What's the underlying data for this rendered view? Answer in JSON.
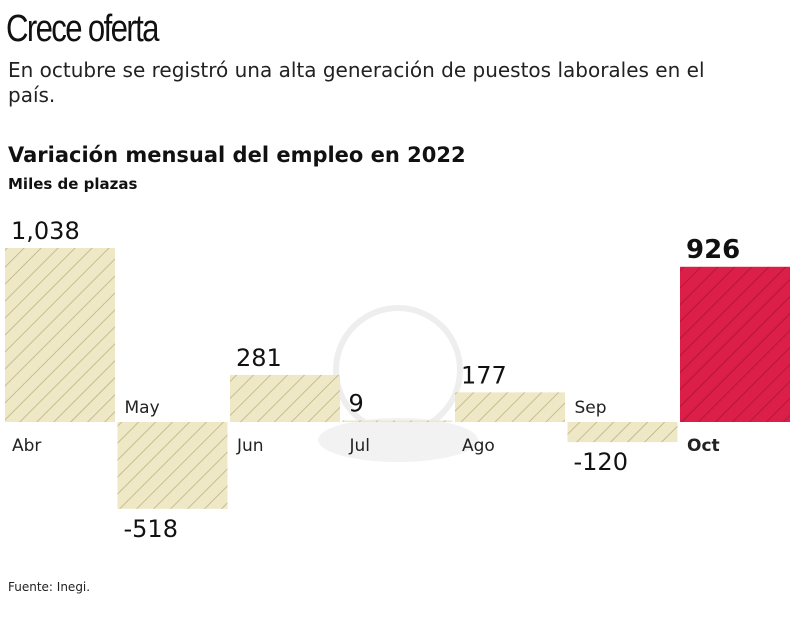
{
  "header": {
    "title": "Crece oferta",
    "subtitle": "En octubre se registró una alta generación de puestos laborales en el país."
  },
  "chart_data": {
    "type": "bar",
    "title": "Variación mensual del empleo en 2022",
    "ylabel": "Miles de plazas",
    "categories": [
      "Abr",
      "May",
      "Jun",
      "Jul",
      "Ago",
      "Sep",
      "Oct"
    ],
    "values": [
      1038,
      -518,
      281,
      9,
      177,
      -120,
      926
    ],
    "value_labels": [
      "1,038",
      "-518",
      "281",
      "9",
      "177",
      "-120",
      "926"
    ],
    "highlight_index": 6,
    "colors": {
      "bar": "#efe8c6",
      "hatch": "#bdb27e",
      "highlight": "#dc1f48",
      "highlight_hatch": "#9e1030"
    },
    "grid": false
  },
  "footer": {
    "source": "Fuente: Inegi."
  }
}
